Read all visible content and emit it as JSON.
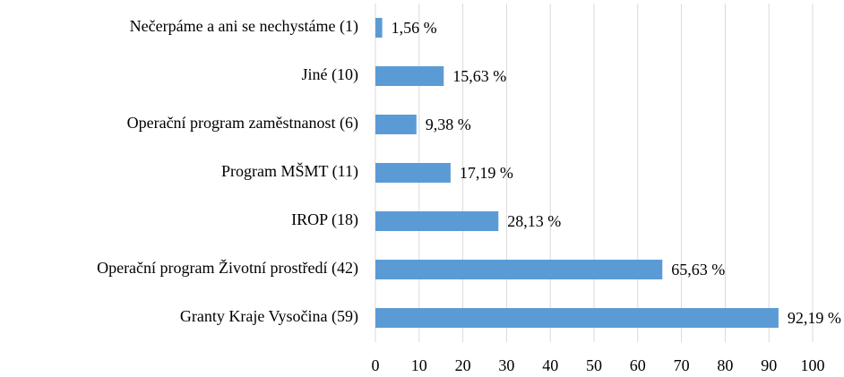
{
  "chart_data": {
    "type": "barh",
    "categories": [
      "Nečerpáme a ani se nechystáme (1)",
      "Jiné (10)",
      "Operační program zaměstnanost (6)",
      "Program MŠMT (11)",
      "IROP (18)",
      "Operační program Životní prostředí (42)",
      "Granty Kraje Vysočina (59)"
    ],
    "values": [
      1.56,
      15.63,
      9.38,
      17.19,
      28.13,
      65.63,
      92.19
    ],
    "value_labels": [
      "1,56 %",
      "15,63 %",
      "9,38 %",
      "17,19 %",
      "28,13 %",
      "65,63 %",
      "92,19 %"
    ],
    "color": "#5b9bd5",
    "xlim": [
      0,
      100
    ],
    "xticks": [
      0,
      10,
      20,
      30,
      40,
      50,
      60,
      70,
      80,
      90,
      100
    ],
    "grid": true
  }
}
